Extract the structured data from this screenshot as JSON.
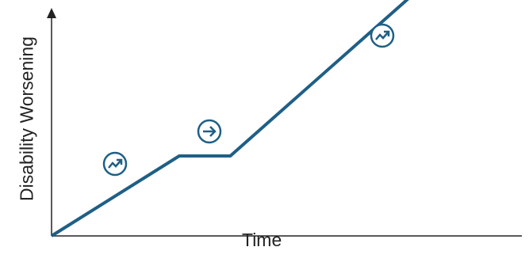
{
  "chart_data": {
    "type": "line",
    "ylabel": "Disability Worsening",
    "xlabel": "Time",
    "grid": false,
    "legend": "none",
    "series": [
      {
        "x": [
          0,
          1,
          1.4,
          3.1
        ],
        "y": [
          0,
          1,
          1,
          3.4
        ]
      }
    ],
    "annotations": [
      {
        "icon": "trending-up-icon",
        "phase": "progression"
      },
      {
        "icon": "arrow-right-icon",
        "phase": "plateau"
      },
      {
        "icon": "trending-up-icon",
        "phase": "progression"
      }
    ]
  },
  "colors": {
    "line": "#1f5f86",
    "axis": "#222222",
    "text": "#222222"
  }
}
